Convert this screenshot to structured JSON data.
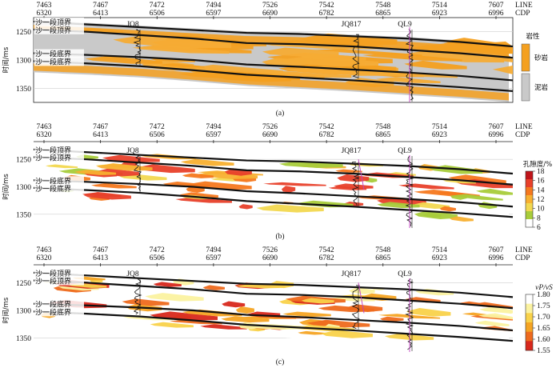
{
  "chart_data": [
    {
      "panel": "a",
      "type": "heatmap",
      "caption": "(a)",
      "x_axis_top": {
        "line_label": "LINE",
        "cdp_label": "CDP",
        "line_ticks": [
          "7463",
          "7467",
          "7472",
          "7494",
          "7526",
          "7542",
          "7548",
          "7514",
          "7607"
        ],
        "cdp_ticks": [
          "6320",
          "6413",
          "6506",
          "6597",
          "6690",
          "6782",
          "6865",
          "6923",
          "6996"
        ]
      },
      "ylabel": "时间/ms",
      "y_ticks": [
        1250,
        1300,
        1350
      ],
      "ylim": [
        1375,
        1225
      ],
      "horizons": [
        {
          "label": "沙一段顶界",
          "times": [
            1232,
            1237,
            1242,
            1247,
            1252,
            1254,
            1258,
            1262,
            1268,
            1276
          ]
        },
        {
          "label": "沙一段顶界",
          "times": [
            1246,
            1250,
            1256,
            1262,
            1270,
            1272,
            1276,
            1282,
            1288,
            1296
          ]
        },
        {
          "label": "沙一段底界",
          "times": [
            1288,
            1291,
            1295,
            1300,
            1308,
            1312,
            1317,
            1322,
            1328,
            1336
          ]
        },
        {
          "label": "沙一段底界",
          "times": [
            1302,
            1306,
            1311,
            1318,
            1326,
            1331,
            1336,
            1342,
            1348,
            1355
          ]
        }
      ],
      "wells": [
        "JQ8",
        "JQ817",
        "QL9"
      ],
      "legend": {
        "title": "岩性",
        "entries": [
          {
            "label": "砂岩",
            "color": "#f4a020"
          },
          {
            "label": "泥岩",
            "color": "#c9c9c9"
          }
        ]
      }
    },
    {
      "panel": "b",
      "type": "heatmap",
      "caption": "(b)",
      "x_axis_top": {
        "line_label": "LINE",
        "cdp_label": "CDP",
        "line_ticks": [
          "7463",
          "7467",
          "7472",
          "7494",
          "7526",
          "7542",
          "7548",
          "7514",
          "7607"
        ],
        "cdp_ticks": [
          "6320",
          "6413",
          "6506",
          "6597",
          "6690",
          "6782",
          "6865",
          "6923",
          "6996"
        ]
      },
      "ylabel": "时间/ms",
      "y_ticks": [
        1250,
        1300,
        1350
      ],
      "ylim": [
        1375,
        1225
      ],
      "horizons": [
        {
          "label": "沙一段顶界",
          "times": [
            1232,
            1237,
            1242,
            1247,
            1252,
            1254,
            1258,
            1262,
            1268,
            1276
          ]
        },
        {
          "label": "沙一段顶界",
          "times": [
            1246,
            1250,
            1256,
            1262,
            1270,
            1272,
            1276,
            1282,
            1288,
            1296
          ]
        },
        {
          "label": "沙一段底界",
          "times": [
            1288,
            1291,
            1295,
            1300,
            1308,
            1312,
            1317,
            1322,
            1328,
            1336
          ]
        },
        {
          "label": "沙一段底界",
          "times": [
            1302,
            1306,
            1311,
            1318,
            1326,
            1331,
            1336,
            1342,
            1348,
            1355
          ]
        }
      ],
      "wells": [
        "JQ8",
        "JQ817",
        "QL9"
      ],
      "colorbar": {
        "title": "孔隙度/%",
        "ticks": [
          18,
          16,
          14,
          12,
          10,
          8,
          6
        ],
        "range": [
          6,
          18
        ],
        "colors": [
          "#c0141a",
          "#e8402a",
          "#f5781e",
          "#f8b030",
          "#f2d850",
          "#a8cc3a",
          "#ffffff"
        ]
      }
    },
    {
      "panel": "c",
      "type": "heatmap",
      "caption": "(c)",
      "x_axis_top": {
        "line_label": "LINE",
        "cdp_label": "CDP",
        "line_ticks": [
          "7463",
          "7467",
          "7472",
          "7494",
          "7526",
          "7542",
          "7548",
          "7514",
          "7607"
        ],
        "cdp_ticks": [
          "6320",
          "6413",
          "6506",
          "6597",
          "6690",
          "6782",
          "6865",
          "6923",
          "6996"
        ]
      },
      "ylabel": "时间/ms",
      "y_ticks": [
        1250,
        1300,
        1350
      ],
      "ylim": [
        1375,
        1225
      ],
      "horizons": [
        {
          "label": "沙一段顶界",
          "times": [
            1232,
            1237,
            1242,
            1247,
            1252,
            1254,
            1258,
            1262,
            1268,
            1276
          ]
        },
        {
          "label": "沙一段顶界",
          "times": [
            1246,
            1250,
            1256,
            1262,
            1270,
            1272,
            1276,
            1282,
            1288,
            1296
          ]
        },
        {
          "label": "沙一段底界",
          "times": [
            1288,
            1291,
            1295,
            1300,
            1308,
            1312,
            1317,
            1322,
            1328,
            1336
          ]
        },
        {
          "label": "沙一段底界",
          "times": [
            1302,
            1306,
            1311,
            1318,
            1326,
            1331,
            1336,
            1342,
            1348,
            1355
          ]
        }
      ],
      "wells": [
        "JQ8",
        "JQ817",
        "QL9"
      ],
      "colorbar": {
        "title": "vP/vS",
        "ticks": [
          "1.80",
          "1.75",
          "1.70",
          "1.65",
          "1.60",
          "1.55"
        ],
        "range": [
          1.55,
          1.8
        ],
        "colors": [
          "#ffffff",
          "#fbf2a0",
          "#f9d24a",
          "#f5a423",
          "#ee6a1e",
          "#d8281c"
        ]
      }
    }
  ]
}
